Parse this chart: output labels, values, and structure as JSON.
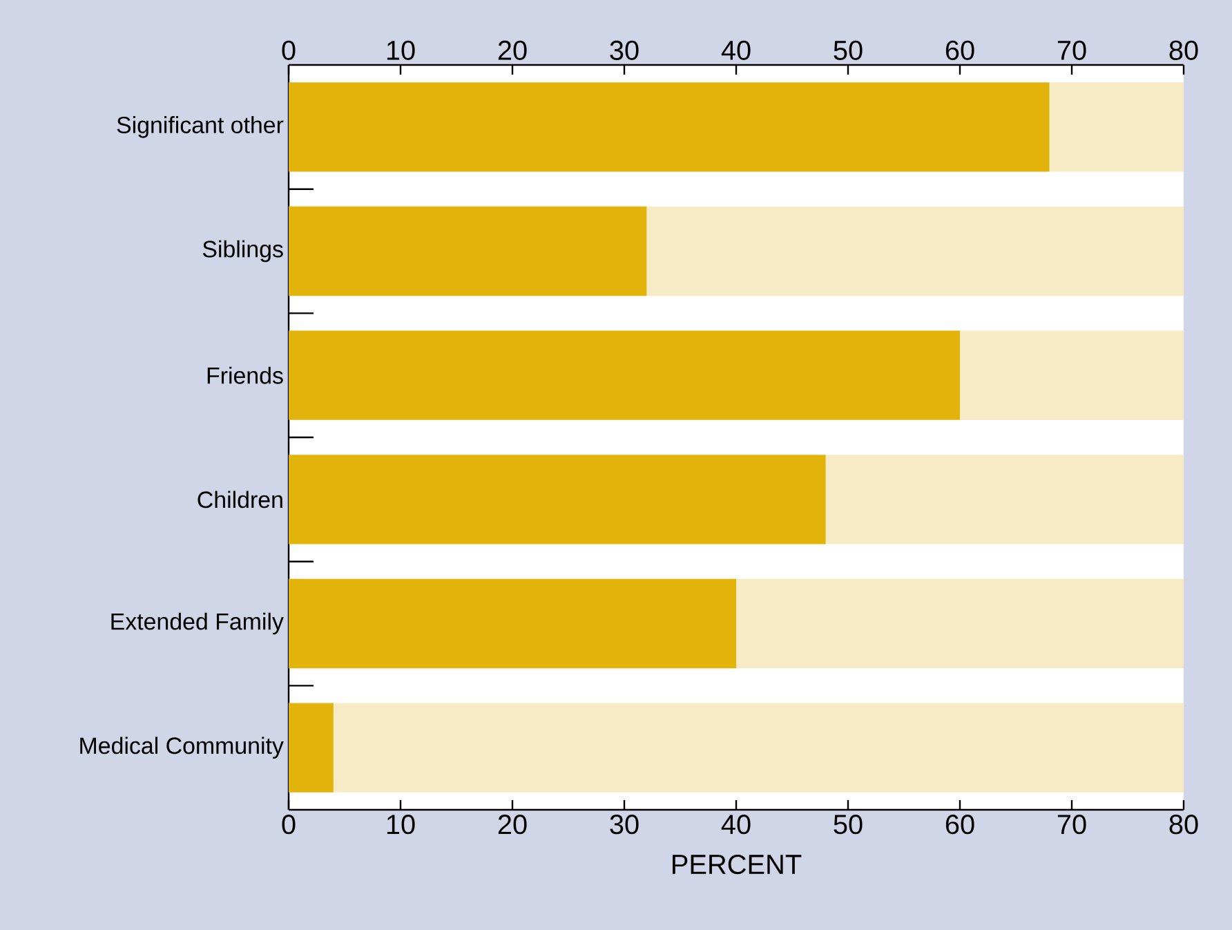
{
  "chart_data": {
    "type": "bar",
    "orientation": "horizontal",
    "stacked": true,
    "categories": [
      "Significant other",
      "Siblings",
      "Friends",
      "Children",
      "Extended Family",
      "Medical Community"
    ],
    "series": [
      {
        "color": "#e2b30a",
        "values": [
          68,
          32,
          60,
          48,
          40,
          4
        ]
      },
      {
        "color": "#f7ebc6",
        "values": [
          12,
          48,
          20,
          32,
          40,
          76
        ]
      }
    ],
    "xlim": [
      0,
      80
    ],
    "xticks": [
      0,
      10,
      20,
      30,
      40,
      50,
      60,
      70,
      80
    ],
    "x2lim": [
      0,
      80
    ],
    "x2ticks": [
      0,
      10,
      20,
      30,
      40,
      50,
      60,
      70,
      80
    ],
    "xlabel": "PERCENT"
  }
}
